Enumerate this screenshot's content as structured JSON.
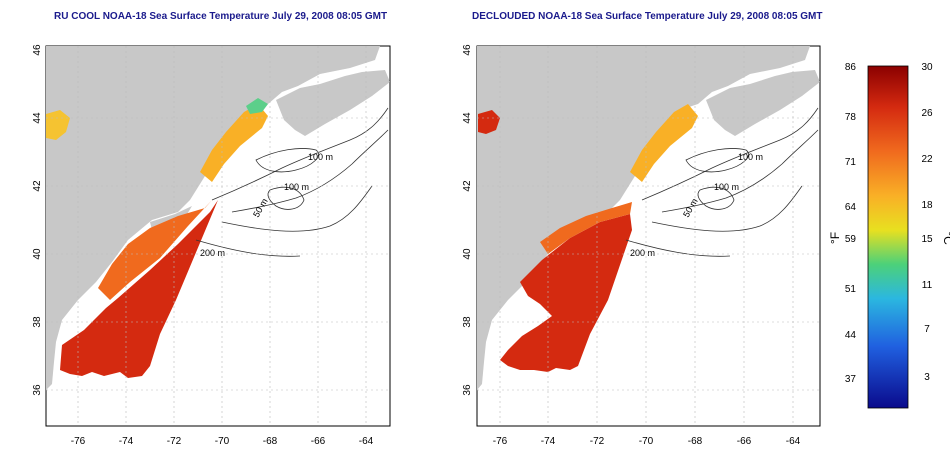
{
  "titles": {
    "left": "RU COOL NOAA-18 Sea Surface Temperature July 29, 2008 08:05 GMT",
    "right": "DECLOUDED NOAA-18 Sea Surface Temperature July 29, 2008 08:05 GMT"
  },
  "axes": {
    "x_ticks": [
      "-76",
      "-74",
      "-72",
      "-70",
      "-68",
      "-66",
      "-64"
    ],
    "y_ticks": [
      "36",
      "38",
      "40",
      "42",
      "44",
      "46"
    ]
  },
  "contour_labels": [
    "100 m",
    "100 m",
    "50 m",
    "200 m"
  ],
  "colorbar": {
    "fahrenheit_label": "°F",
    "celsius_label": "°C",
    "fahrenheit_ticks": [
      "86",
      "78",
      "71",
      "64",
      "59",
      "51",
      "44",
      "37"
    ],
    "celsius_ticks": [
      "30",
      "26",
      "22",
      "18",
      "15",
      "11",
      "7",
      "3"
    ]
  },
  "colors": {
    "land": "#c8c8c8",
    "title": "#1a1a8c",
    "hot": "#d42a10",
    "warm": "#f06a1e",
    "mild": "#f9b026",
    "cool": "#2bb7e0"
  }
}
